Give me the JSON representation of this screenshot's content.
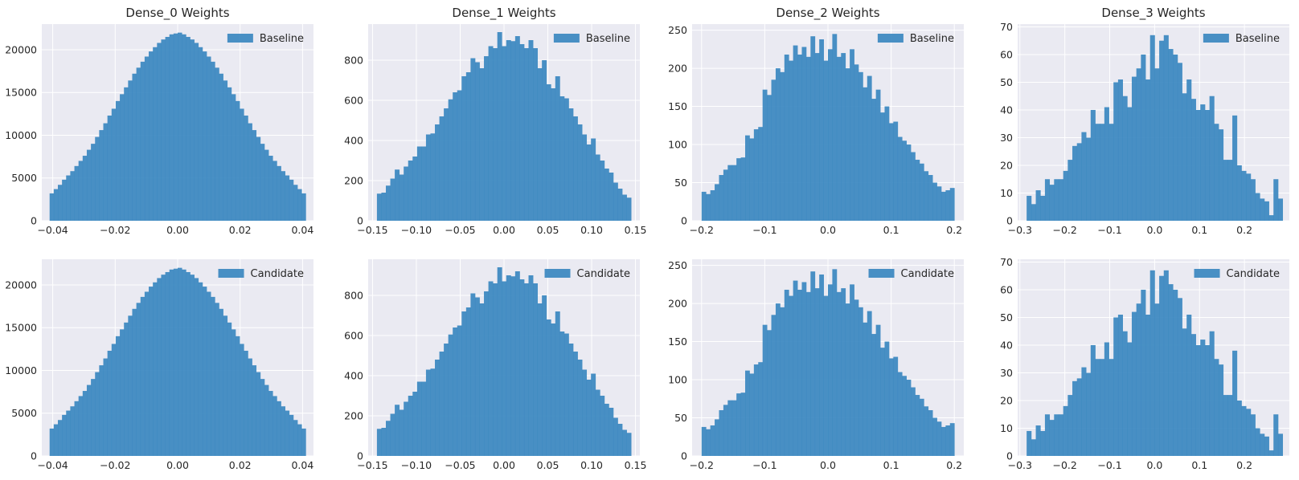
{
  "chart_data": [
    {
      "type": "bar",
      "title": "Dense_0 Weights",
      "legend": "Baseline",
      "legend_position": "top-right",
      "grid": true,
      "color": "#3a87c0",
      "xlim": [
        -0.0435,
        0.0435
      ],
      "ylim": [
        0,
        23000
      ],
      "xticks": [
        -0.04,
        -0.02,
        0.0,
        0.02,
        0.04
      ],
      "xtick_labels": [
        "−0.04",
        "−0.02",
        "0.00",
        "0.02",
        "0.04"
      ],
      "yticks": [
        0,
        5000,
        10000,
        15000,
        20000
      ],
      "ytick_labels": [
        "0",
        "5000",
        "10000",
        "15000",
        "20000"
      ],
      "bin_range": [
        -0.041,
        0.041
      ],
      "values": [
        3200,
        3700,
        4200,
        4800,
        5300,
        5800,
        6400,
        7000,
        7600,
        8300,
        9000,
        9800,
        10600,
        11400,
        12300,
        13100,
        14000,
        14800,
        15600,
        16400,
        17200,
        17900,
        18600,
        19200,
        19800,
        20300,
        20800,
        21200,
        21500,
        21800,
        21900,
        22000,
        21800,
        21500,
        21200,
        20800,
        20300,
        19800,
        19200,
        18600,
        17900,
        17200,
        16400,
        15600,
        14800,
        14000,
        13100,
        12300,
        11400,
        10600,
        9800,
        9000,
        8300,
        7600,
        7000,
        6400,
        5800,
        5300,
        4800,
        4200,
        3700,
        3200
      ]
    },
    {
      "type": "bar",
      "title": "Dense_1 Weights",
      "legend": "Baseline",
      "legend_position": "top-right",
      "grid": true,
      "color": "#3a87c0",
      "xlim": [
        -0.155,
        0.155
      ],
      "ylim": [
        0,
        980
      ],
      "xticks": [
        -0.15,
        -0.1,
        -0.05,
        0.0,
        0.05,
        0.1,
        0.15
      ],
      "xtick_labels": [
        "−0.15",
        "−0.10",
        "−0.05",
        "0.00",
        "0.05",
        "0.10",
        "0.15"
      ],
      "yticks": [
        0,
        200,
        400,
        600,
        800
      ],
      "ytick_labels": [
        "0",
        "200",
        "400",
        "600",
        "800"
      ],
      "bin_range": [
        -0.145,
        0.145
      ],
      "values": [
        135,
        140,
        175,
        210,
        255,
        230,
        270,
        300,
        320,
        370,
        370,
        430,
        435,
        480,
        520,
        560,
        605,
        640,
        650,
        720,
        740,
        810,
        790,
        760,
        820,
        870,
        860,
        940,
        870,
        900,
        895,
        920,
        880,
        860,
        900,
        860,
        760,
        800,
        680,
        660,
        720,
        620,
        610,
        560,
        520,
        480,
        430,
        380,
        410,
        330,
        300,
        260,
        240,
        190,
        160,
        130,
        115
      ]
    },
    {
      "type": "bar",
      "title": "Dense_2 Weights",
      "legend": "Baseline",
      "legend_position": "top-right",
      "grid": true,
      "color": "#3a87c0",
      "xlim": [
        -0.215,
        0.215
      ],
      "ylim": [
        0,
        258
      ],
      "xticks": [
        -0.2,
        -0.1,
        0.0,
        0.1,
        0.2
      ],
      "xtick_labels": [
        "−0.2",
        "−0.1",
        "0.0",
        "0.1",
        "0.2"
      ],
      "yticks": [
        0,
        50,
        100,
        150,
        200,
        250
      ],
      "ytick_labels": [
        "0",
        "50",
        "100",
        "150",
        "200",
        "250"
      ],
      "bin_range": [
        -0.2,
        0.2
      ],
      "values": [
        38,
        35,
        40,
        48,
        60,
        67,
        73,
        73,
        82,
        83,
        112,
        108,
        120,
        123,
        172,
        165,
        185,
        200,
        195,
        218,
        210,
        230,
        218,
        228,
        215,
        242,
        220,
        238,
        210,
        225,
        245,
        215,
        220,
        200,
        225,
        205,
        195,
        175,
        190,
        160,
        172,
        142,
        150,
        128,
        130,
        110,
        105,
        100,
        90,
        80,
        75,
        65,
        60,
        50,
        45,
        38,
        40,
        43
      ]
    },
    {
      "type": "bar",
      "title": "Dense_3 Weights",
      "legend": "Baseline",
      "legend_position": "top-right",
      "grid": true,
      "color": "#3a87c0",
      "xlim": [
        -0.305,
        0.3
      ],
      "ylim": [
        0,
        71
      ],
      "xticks": [
        -0.3,
        -0.2,
        -0.1,
        0.0,
        0.1,
        0.2
      ],
      "xtick_labels": [
        "−0.3",
        "−0.2",
        "−0.1",
        "0.0",
        "0.1",
        "0.2"
      ],
      "yticks": [
        0,
        10,
        20,
        30,
        40,
        50,
        60,
        70
      ],
      "ytick_labels": [
        "0",
        "10",
        "20",
        "30",
        "40",
        "50",
        "60",
        "70"
      ],
      "bin_range": [
        -0.285,
        0.285
      ],
      "values": [
        9,
        6,
        11,
        9,
        15,
        13,
        15,
        15,
        18,
        22,
        27,
        28,
        32,
        30,
        40,
        35,
        35,
        41,
        35,
        50,
        51,
        45,
        41,
        52,
        55,
        60,
        51,
        67,
        55,
        65,
        67,
        62,
        60,
        57,
        46,
        51,
        44,
        40,
        42,
        40,
        45,
        35,
        33,
        22,
        22,
        38,
        20,
        18,
        17,
        15,
        10,
        8,
        7,
        2,
        15,
        8
      ]
    },
    {
      "type": "bar",
      "legend": "Candidate",
      "legend_position": "top-right",
      "grid": true,
      "color": "#3a87c0",
      "xlim": [
        -0.0435,
        0.0435
      ],
      "ylim": [
        0,
        23000
      ],
      "xticks": [
        -0.04,
        -0.02,
        0.0,
        0.02,
        0.04
      ],
      "xtick_labels": [
        "−0.04",
        "−0.02",
        "0.00",
        "0.02",
        "0.04"
      ],
      "yticks": [
        0,
        5000,
        10000,
        15000,
        20000
      ],
      "ytick_labels": [
        "0",
        "5000",
        "10000",
        "15000",
        "20000"
      ],
      "bin_range": [
        -0.041,
        0.041
      ],
      "values": [
        3200,
        3700,
        4200,
        4800,
        5300,
        5800,
        6400,
        7000,
        7600,
        8300,
        9000,
        9800,
        10600,
        11400,
        12300,
        13100,
        14000,
        14800,
        15600,
        16400,
        17200,
        17900,
        18600,
        19200,
        19800,
        20300,
        20800,
        21200,
        21500,
        21800,
        21900,
        22000,
        21800,
        21500,
        21200,
        20800,
        20300,
        19800,
        19200,
        18600,
        17900,
        17200,
        16400,
        15600,
        14800,
        14000,
        13100,
        12300,
        11400,
        10600,
        9800,
        9000,
        8300,
        7600,
        7000,
        6400,
        5800,
        5300,
        4800,
        4200,
        3700,
        3200
      ]
    },
    {
      "type": "bar",
      "legend": "Candidate",
      "legend_position": "top-right",
      "grid": true,
      "color": "#3a87c0",
      "xlim": [
        -0.155,
        0.155
      ],
      "ylim": [
        0,
        980
      ],
      "xticks": [
        -0.15,
        -0.1,
        -0.05,
        0.0,
        0.05,
        0.1,
        0.15
      ],
      "xtick_labels": [
        "−0.15",
        "−0.10",
        "−0.05",
        "0.00",
        "0.05",
        "0.10",
        "0.15"
      ],
      "yticks": [
        0,
        200,
        400,
        600,
        800
      ],
      "ytick_labels": [
        "0",
        "200",
        "400",
        "600",
        "800"
      ],
      "bin_range": [
        -0.145,
        0.145
      ],
      "values": [
        135,
        140,
        175,
        210,
        255,
        230,
        270,
        300,
        320,
        370,
        370,
        430,
        435,
        480,
        520,
        560,
        605,
        640,
        650,
        720,
        740,
        810,
        790,
        760,
        820,
        870,
        860,
        940,
        870,
        900,
        895,
        920,
        880,
        860,
        900,
        860,
        760,
        800,
        680,
        660,
        720,
        620,
        610,
        560,
        520,
        480,
        430,
        380,
        410,
        330,
        300,
        260,
        240,
        190,
        160,
        130,
        115
      ]
    },
    {
      "type": "bar",
      "legend": "Candidate",
      "legend_position": "top-right",
      "grid": true,
      "color": "#3a87c0",
      "xlim": [
        -0.215,
        0.215
      ],
      "ylim": [
        0,
        258
      ],
      "xticks": [
        -0.2,
        -0.1,
        0.0,
        0.1,
        0.2
      ],
      "xtick_labels": [
        "−0.2",
        "−0.1",
        "0.0",
        "0.1",
        "0.2"
      ],
      "yticks": [
        0,
        50,
        100,
        150,
        200,
        250
      ],
      "ytick_labels": [
        "0",
        "50",
        "100",
        "150",
        "200",
        "250"
      ],
      "bin_range": [
        -0.2,
        0.2
      ],
      "values": [
        38,
        35,
        40,
        48,
        60,
        67,
        73,
        73,
        82,
        83,
        112,
        108,
        120,
        123,
        172,
        165,
        185,
        200,
        195,
        218,
        210,
        230,
        218,
        228,
        215,
        242,
        220,
        238,
        210,
        225,
        245,
        215,
        220,
        200,
        225,
        205,
        195,
        175,
        190,
        160,
        172,
        142,
        150,
        128,
        130,
        110,
        105,
        100,
        90,
        80,
        75,
        65,
        60,
        50,
        45,
        38,
        40,
        43
      ]
    },
    {
      "type": "bar",
      "legend": "Candidate",
      "legend_position": "top-right",
      "grid": true,
      "color": "#3a87c0",
      "xlim": [
        -0.305,
        0.3
      ],
      "ylim": [
        0,
        71
      ],
      "xticks": [
        -0.3,
        -0.2,
        -0.1,
        0.0,
        0.1,
        0.2
      ],
      "xtick_labels": [
        "−0.3",
        "−0.2",
        "−0.1",
        "0.0",
        "0.1",
        "0.2"
      ],
      "yticks": [
        0,
        10,
        20,
        30,
        40,
        50,
        60,
        70
      ],
      "ytick_labels": [
        "0",
        "10",
        "20",
        "30",
        "40",
        "50",
        "60",
        "70"
      ],
      "bin_range": [
        -0.285,
        0.285
      ],
      "values": [
        9,
        6,
        11,
        9,
        15,
        13,
        15,
        15,
        18,
        22,
        27,
        28,
        32,
        30,
        40,
        35,
        35,
        41,
        35,
        50,
        51,
        45,
        41,
        52,
        55,
        60,
        51,
        67,
        55,
        65,
        67,
        62,
        60,
        57,
        46,
        51,
        44,
        40,
        42,
        40,
        45,
        35,
        33,
        22,
        22,
        38,
        20,
        18,
        17,
        15,
        10,
        8,
        7,
        2,
        15,
        8
      ]
    }
  ]
}
